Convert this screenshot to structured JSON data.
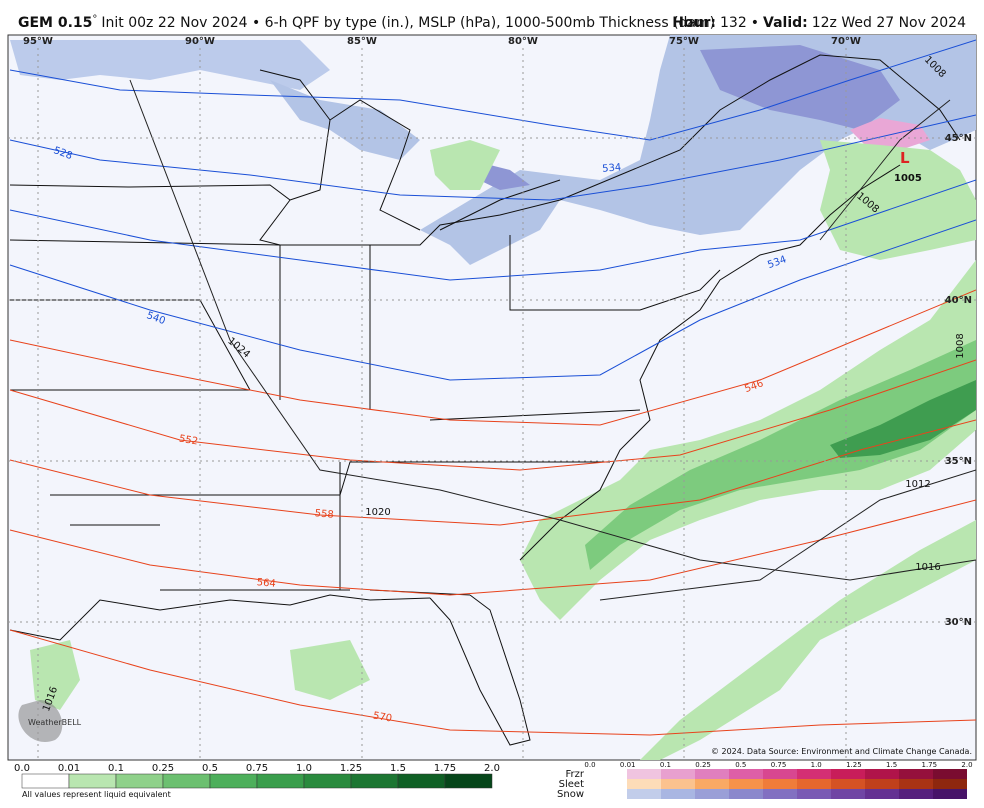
{
  "header": {
    "model": "GEM 0.15",
    "degree": "°",
    "init": "Init 00z 22 Nov 2024 • 6-h QPF by type (in.), MSLP (hPa), 1000-500mb Thickness (dam)",
    "hour_label": "Hour:",
    "hour": "132",
    "sep": "•",
    "valid_label": "Valid:",
    "valid": "12z Wed 27 Nov 2024"
  },
  "map": {
    "lon_labels": [
      "95°W",
      "90°W",
      "85°W",
      "80°W",
      "75°W",
      "70°W"
    ],
    "lat_labels": [
      "45°N",
      "40°N",
      "35°N",
      "30°N"
    ],
    "thickness_labels": [
      "528",
      "534",
      "534",
      "540",
      "546",
      "552",
      "558",
      "564",
      "570"
    ],
    "isobar_labels": [
      "1008",
      "1024",
      "1020",
      "1016",
      "1012",
      "1008",
      "1008",
      "1016"
    ],
    "low": {
      "symbol": "L",
      "pressure": "1005"
    },
    "copyright": "© 2024. Data Source: Environment and Climate Change Canada.",
    "logo": "WeatherBELL"
  },
  "legend": {
    "rain_labels": [
      "0.0",
      "0.01",
      "0.1",
      "0.25",
      "0.5",
      "0.75",
      "1.0",
      "1.25",
      "1.5",
      "1.75",
      "2.0"
    ],
    "note": "All values represent liquid equivalent",
    "type_labels": [
      "0.0",
      "0.01",
      "0.1",
      "0.25",
      "0.5",
      "0.75",
      "1.0",
      "1.25",
      "1.5",
      "1.75",
      "2.0"
    ],
    "types": [
      "Frzr",
      "Sleet",
      "Snow"
    ]
  }
}
